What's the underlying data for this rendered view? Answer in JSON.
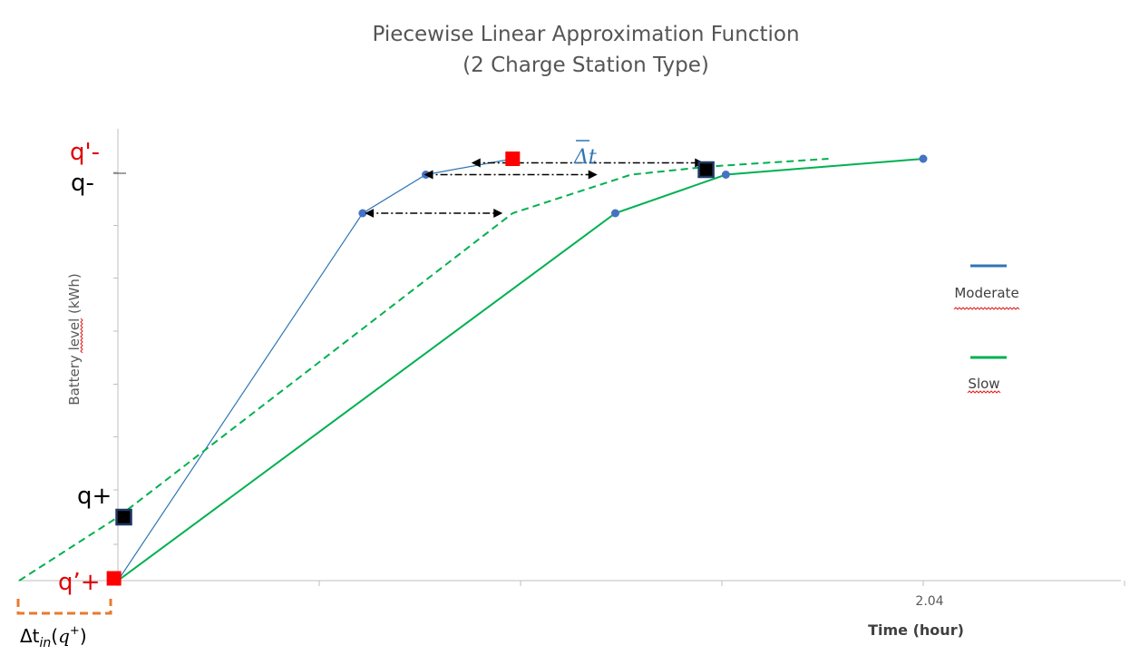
{
  "chart_data": {
    "type": "line",
    "title": [
      "Piecewise Linear Approximation Function",
      "(2 Charge Station Type)"
    ],
    "xlabel": "Time (hour)",
    "ylabel": "Battery level (kWh)",
    "x_tick_labels": [
      {
        "x": 2.04,
        "label": "2.04"
      }
    ],
    "xlim": [
      -0.25,
      2.55
    ],
    "ylim": [
      0,
      1.0
    ],
    "legend": {
      "position": "right",
      "entries": [
        {
          "name": "Moderate",
          "color": "#2e75b6"
        },
        {
          "name": "Slow",
          "color": "#00b050"
        }
      ]
    },
    "series": [
      {
        "name": "Moderate",
        "color": "#2e75b6",
        "style": "solid",
        "x": [
          0,
          0.62,
          0.78,
          1.0
        ],
        "y": [
          0,
          0.81,
          0.895,
          0.93
        ],
        "markers": [
          false,
          true,
          true,
          false
        ]
      },
      {
        "name": "Slow",
        "color": "#00b050",
        "style": "solid",
        "x": [
          0,
          1.26,
          1.54,
          2.04
        ],
        "y": [
          0,
          0.81,
          0.895,
          0.93
        ],
        "markers": [
          false,
          true,
          true,
          true
        ]
      },
      {
        "name": "Slow",
        "color": "#00b050",
        "style": "dashed",
        "x": [
          -0.25,
          0.0,
          1.0,
          1.3,
          1.5,
          1.8
        ],
        "y": [
          0,
          0.14,
          0.81,
          0.895,
          0.913,
          0.93
        ]
      }
    ],
    "annotations": {
      "q_labels": {
        "q_prime_minus": "q'-",
        "q_minus": "q-",
        "q_plus": "q+",
        "q_prime_plus": "q’+"
      },
      "red_points": [
        {
          "x": 1.0,
          "y": 0.93
        },
        {
          "x": -0.01,
          "y": 0.005
        }
      ],
      "black_points": [
        {
          "x": 1.49,
          "y": 0.906
        },
        {
          "x": 0.015,
          "y": 0.14
        }
      ],
      "delta_t_label": "Δt",
      "delta_t_in": {
        "base": "Δt",
        "sub": "in",
        "arg": "q",
        "sup": "+"
      },
      "arrows": [
        {
          "x1": 0.63,
          "x2": 0.97,
          "y": 0.81
        },
        {
          "x1": 0.78,
          "x2": 1.21,
          "y": 0.895
        },
        {
          "x1": 0.9,
          "x2": 1.48,
          "y": 0.921
        }
      ]
    },
    "colors": {
      "axis": "#bfbfbf",
      "red_label": "#e00000",
      "delta_blue": "#2e75b6",
      "bracket_orange": "#e87a2e"
    }
  }
}
